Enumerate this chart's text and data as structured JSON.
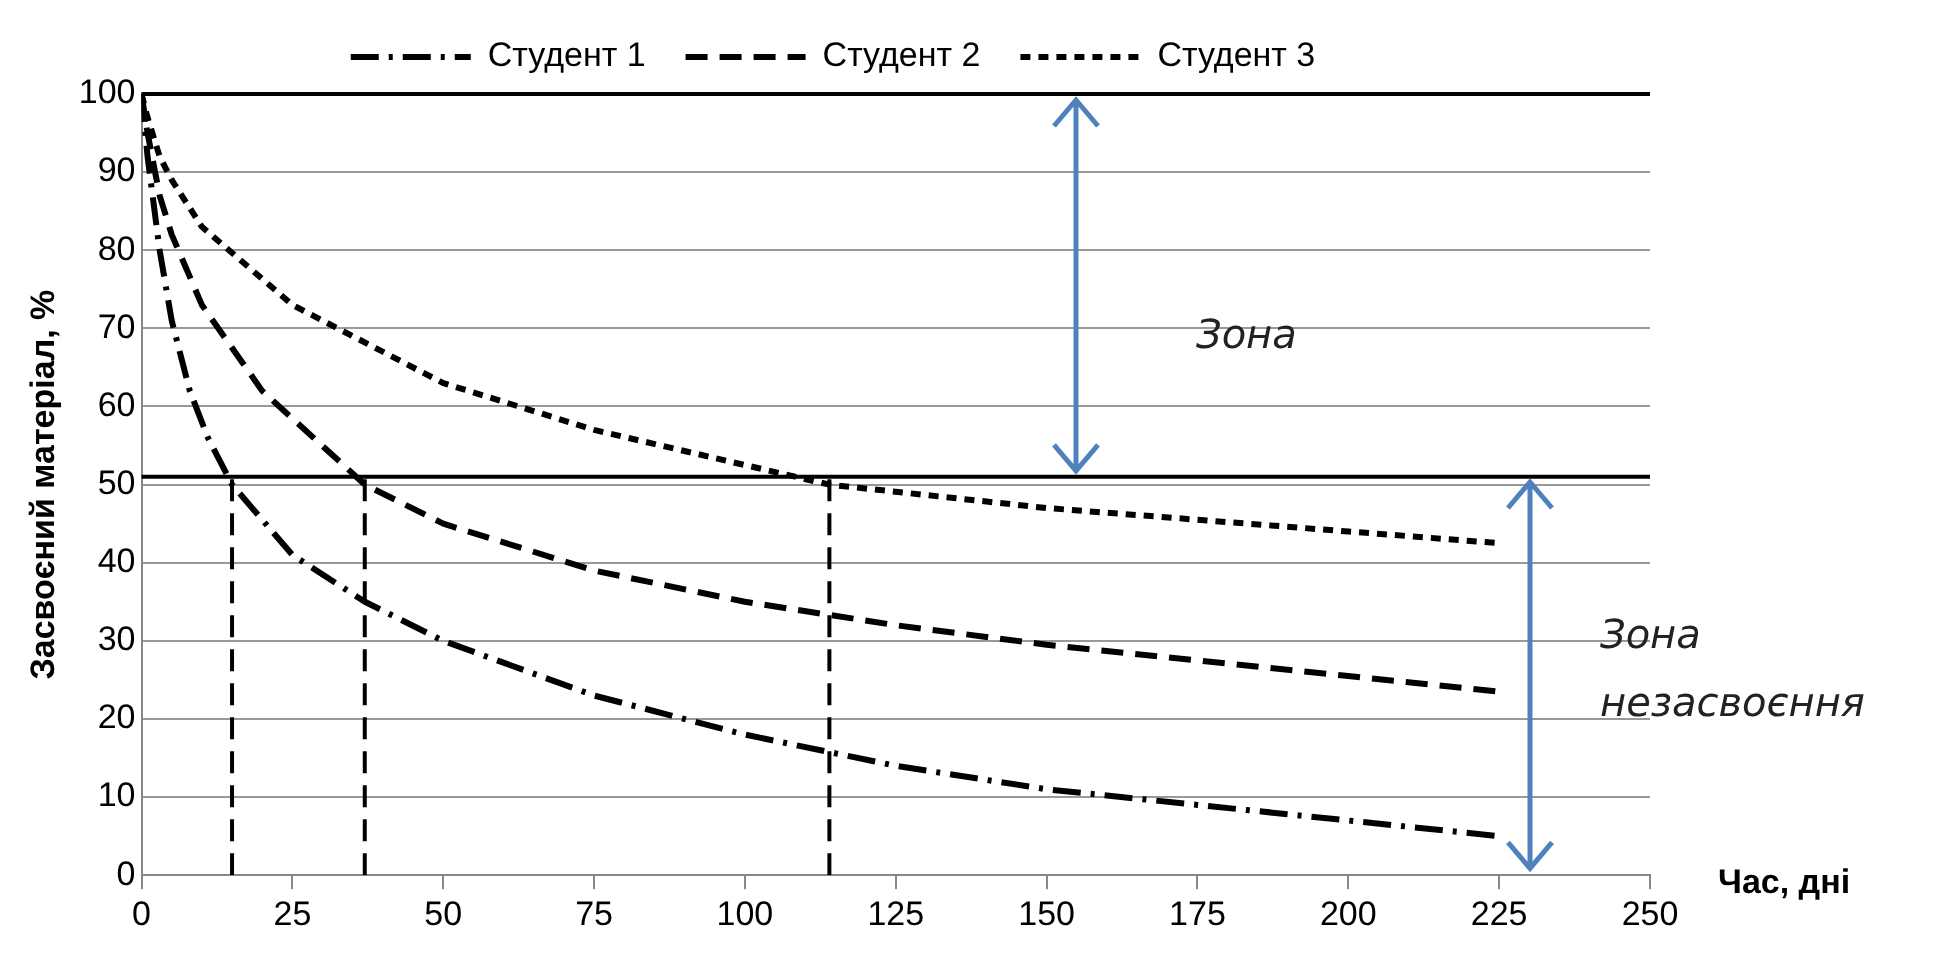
{
  "chart_data": {
    "type": "line",
    "xlabel": "Час, дні",
    "ylabel": "Засвоєний матеріал, %",
    "xlim": [
      0,
      250
    ],
    "xticks": [
      0,
      25,
      50,
      75,
      100,
      125,
      150,
      175,
      200,
      225,
      250
    ],
    "ylim": [
      0,
      100
    ],
    "yticks": [
      0,
      10,
      20,
      30,
      40,
      50,
      60,
      70,
      80,
      90,
      100
    ],
    "grid": "y",
    "legend": "top",
    "marker": "none",
    "series": [
      {
        "name": "Студент 1",
        "color": "#000000",
        "line_style": "dashdot",
        "x": [
          0,
          1,
          3,
          5,
          8,
          11,
          15,
          25,
          37,
          50,
          75,
          100,
          125,
          150,
          175,
          200,
          225
        ],
        "values": [
          100,
          92,
          80,
          71,
          62,
          56,
          50,
          41,
          35,
          30,
          23,
          18,
          14,
          11,
          9,
          7,
          5
        ]
      },
      {
        "name": "Студент 2",
        "color": "#000000",
        "line_style": "dashed",
        "x": [
          0,
          1,
          3,
          5,
          10,
          20,
          37,
          50,
          75,
          100,
          125,
          150,
          175,
          200,
          225
        ],
        "values": [
          100,
          95,
          87,
          82,
          73,
          62,
          50,
          45,
          39,
          35,
          32,
          29.5,
          27.5,
          25.5,
          23.5
        ]
      },
      {
        "name": "Студент 3",
        "color": "#000000",
        "line_style": "dotted",
        "x": [
          0,
          1,
          3,
          5,
          10,
          25,
          50,
          75,
          100,
          114,
          150,
          175,
          200,
          225
        ],
        "values": [
          100,
          97,
          92,
          89,
          83,
          73,
          63,
          57,
          52.5,
          50,
          47,
          45.5,
          44,
          42.5
        ]
      },
      {
        "color": "#000000",
        "line_style": "dashed",
        "x": [
          15,
          15
        ],
        "values": [
          0,
          51
        ]
      },
      {
        "color": "#000000",
        "line_style": "dashed",
        "x": [
          37,
          37
        ],
        "values": [
          0,
          51
        ]
      },
      {
        "color": "#000000",
        "line_style": "dashed",
        "x": [
          114,
          114
        ],
        "values": [
          0,
          51
        ]
      }
    ],
    "ref_lines": [
      {
        "axis": "y",
        "value": 100,
        "color": "#000000"
      },
      {
        "axis": "y",
        "value": 51,
        "color": "#000000"
      }
    ],
    "annotations": [
      "Зона",
      "Зона незасвоєння"
    ]
  }
}
